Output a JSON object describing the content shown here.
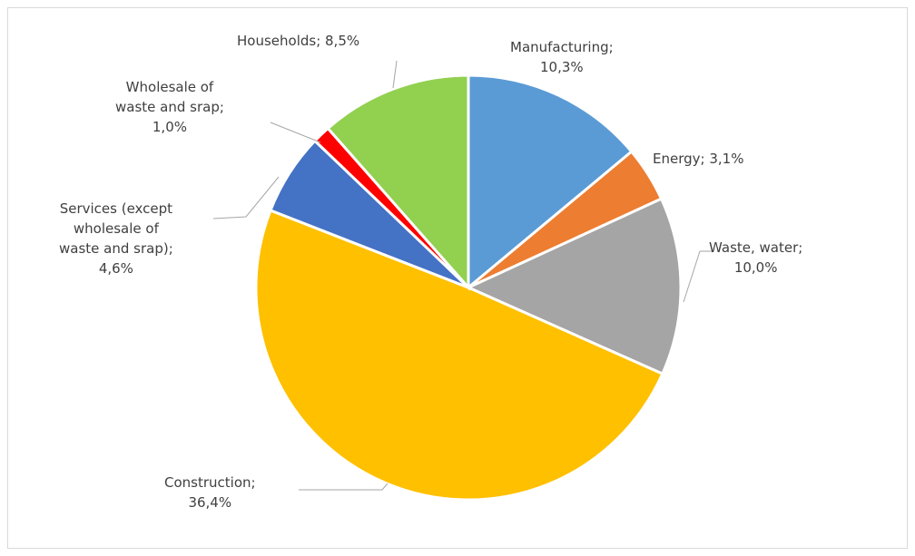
{
  "chart_data": {
    "type": "pie",
    "title": "",
    "legend": "none",
    "slices": [
      {
        "name": "Manufacturing",
        "value": 10.3,
        "label_lines": [
          "Manufacturing;",
          "10,3%"
        ],
        "color": "#5b9bd5"
      },
      {
        "name": "Energy",
        "value": 3.1,
        "label_lines": [
          "Energy; 3,1%"
        ],
        "color": "#ed7d31"
      },
      {
        "name": "Waste, water",
        "value": 10.0,
        "label_lines": [
          "Waste, water;",
          "10,0%"
        ],
        "color": "#a5a5a5"
      },
      {
        "name": "Construction",
        "value": 36.4,
        "label_lines": [
          "Construction;",
          "36,4%"
        ],
        "color": "#ffc000"
      },
      {
        "name": "Services (except wholesale of waste and srap)",
        "value": 4.6,
        "label_lines": [
          "Services (except",
          "wholesale of",
          "waste and srap);",
          "4,6%"
        ],
        "color": "#4472c4"
      },
      {
        "name": "Wholesale of waste and srap",
        "value": 1.0,
        "label_lines": [
          "Wholesale of",
          "waste and srap;",
          "1,0%"
        ],
        "color": "#ff0000"
      },
      {
        "name": "Households",
        "value": 8.5,
        "label_lines": [
          "Households; 8,5%"
        ],
        "color": "#92d050"
      }
    ]
  }
}
